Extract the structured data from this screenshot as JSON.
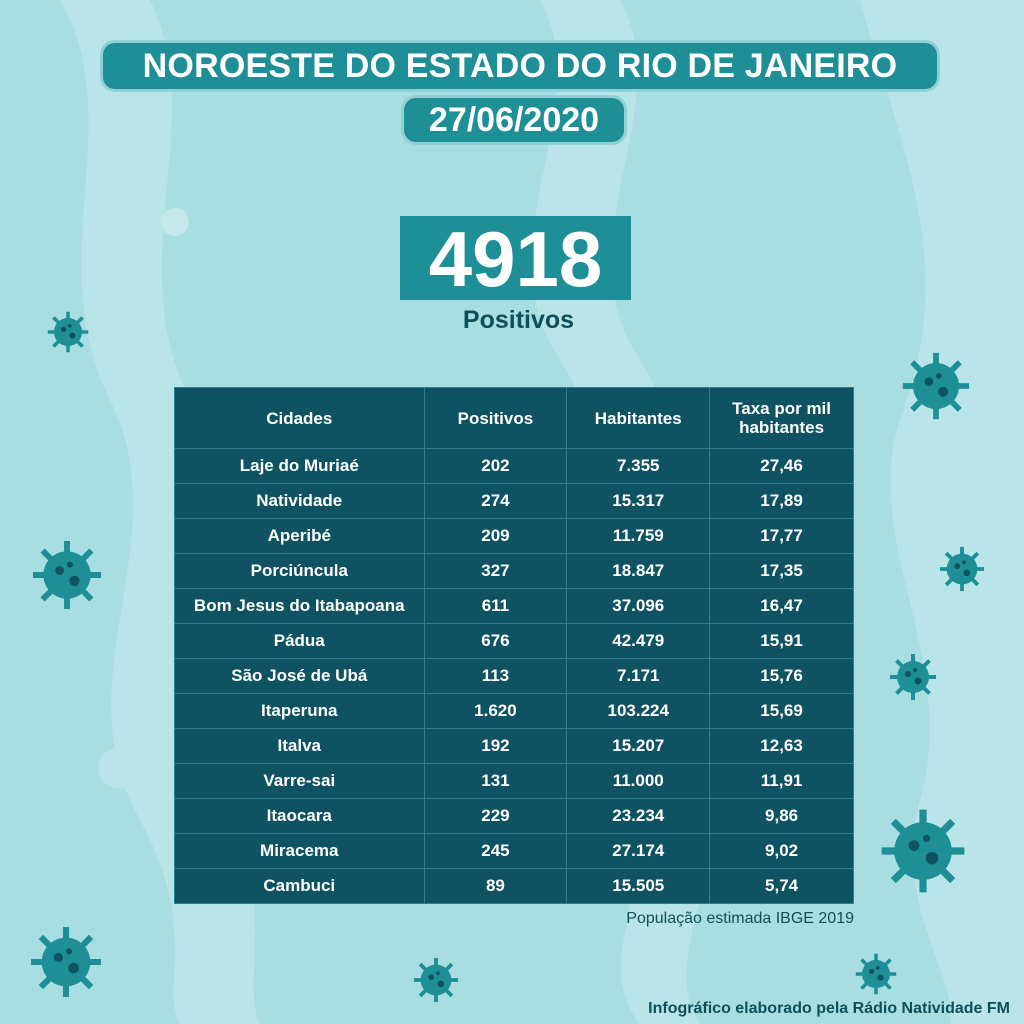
{
  "header": {
    "title": "NOROESTE DO ESTADO DO RIO DE JANEIRO",
    "date": "27/06/2020"
  },
  "summary": {
    "total": "4918",
    "label": "Positivos"
  },
  "table": {
    "headers": [
      "Cidades",
      "Positivos",
      "Habitantes",
      "Taxa por mil habitantes"
    ],
    "rows": [
      [
        "Laje do Muriaé",
        "202",
        "7.355",
        "27,46"
      ],
      [
        "Natividade",
        "274",
        "15.317",
        "17,89"
      ],
      [
        "Aperibé",
        "209",
        "11.759",
        "17,77"
      ],
      [
        "Porciúncula",
        "327",
        "18.847",
        "17,35"
      ],
      [
        "Bom Jesus do Itabapoana",
        "611",
        "37.096",
        "16,47"
      ],
      [
        "Pádua",
        "676",
        "42.479",
        "15,91"
      ],
      [
        "São José de Ubá",
        "113",
        "7.171",
        "15,76"
      ],
      [
        "Itaperuna",
        "1.620",
        "103.224",
        "15,69"
      ],
      [
        "Italva",
        "192",
        "15.207",
        "12,63"
      ],
      [
        "Varre-sai",
        "131",
        "11.000",
        "11,91"
      ],
      [
        "Itaocara",
        "229",
        "23.234",
        "9,86"
      ],
      [
        "Miracema",
        "245",
        "27.174",
        "9,02"
      ],
      [
        "Cambuci",
        "89",
        "15.505",
        "5,74"
      ]
    ]
  },
  "source": "População estimada IBGE 2019",
  "footer": "Infográfico elaborado pela Rádio Natividade FM",
  "colors": {
    "background": "#a8dde2",
    "accent": "#1e8f96",
    "table_bg": "#0f5362",
    "text_dark": "#0f4f5a"
  },
  "icons": [
    "virus-icon"
  ]
}
